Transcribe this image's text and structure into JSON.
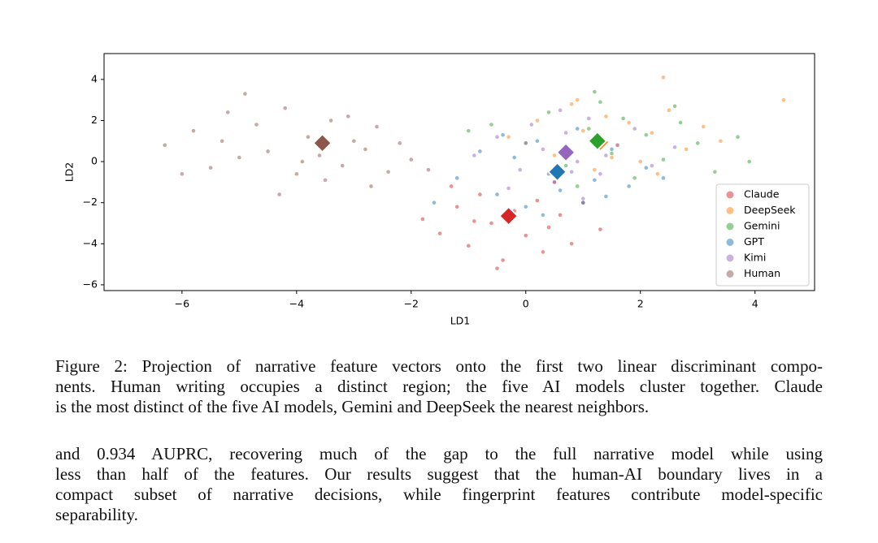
{
  "chart_data": {
    "type": "scatter",
    "xlabel": "LD1",
    "ylabel": "LD2",
    "xlim": [
      -7.36,
      5.04
    ],
    "ylim": [
      -6.28,
      5.26
    ],
    "xticks": [
      {
        "value": -6,
        "label": "−6"
      },
      {
        "value": -4,
        "label": "−4"
      },
      {
        "value": -2,
        "label": "−2"
      },
      0,
      2,
      4
    ],
    "yticks": [
      {
        "value": -6,
        "label": "−6"
      },
      {
        "value": -4,
        "label": "−4"
      },
      {
        "value": -2,
        "label": "−2"
      },
      0,
      2,
      4
    ],
    "legend": "lower right",
    "series": [
      {
        "name": "Claude",
        "color": "#d62728",
        "x": [
          -1.8,
          -1.5,
          -1.2,
          -1.0,
          -0.8,
          -0.6,
          -0.4,
          -0.2,
          0.0,
          0.2,
          0.4,
          0.6,
          0.8,
          1.0,
          1.3,
          -1.3,
          -0.5,
          0.3,
          -0.9,
          0.5
        ],
        "y": [
          -2.8,
          -3.5,
          -2.2,
          -4.1,
          -1.6,
          -3.0,
          -4.8,
          -2.4,
          -3.6,
          -1.9,
          -3.2,
          -2.6,
          -4.0,
          -2.0,
          -3.3,
          -1.2,
          -5.2,
          -4.4,
          -2.9,
          -1.0
        ],
        "centroid": {
          "x": -0.3,
          "y": -2.65
        }
      },
      {
        "name": "DeepSeek",
        "color": "#ff7f0e",
        "x": [
          -0.3,
          0.2,
          0.5,
          0.8,
          1.0,
          1.2,
          1.4,
          1.6,
          1.8,
          2.0,
          2.2,
          2.5,
          2.8,
          3.1,
          3.4,
          0.9,
          1.5,
          2.3,
          4.5,
          2.4
        ],
        "y": [
          1.2,
          2.0,
          0.3,
          2.8,
          1.5,
          -0.4,
          2.2,
          0.8,
          1.9,
          0.0,
          1.4,
          2.5,
          0.6,
          1.7,
          1.0,
          3.0,
          0.2,
          -0.6,
          3.0,
          4.1
        ],
        "centroid": {
          "x": 1.3,
          "y": 0.95
        }
      },
      {
        "name": "Gemini",
        "color": "#2ca02c",
        "x": [
          -0.6,
          0.0,
          0.4,
          0.7,
          1.1,
          1.3,
          1.5,
          1.7,
          1.9,
          2.1,
          2.4,
          2.7,
          3.0,
          3.3,
          3.7,
          0.9,
          2.6,
          1.2,
          -1.0,
          3.9
        ],
        "y": [
          1.8,
          0.9,
          2.4,
          -0.2,
          1.6,
          2.9,
          0.4,
          2.1,
          -0.8,
          1.3,
          0.1,
          1.9,
          0.9,
          -0.5,
          1.2,
          -1.2,
          2.7,
          3.4,
          1.5,
          0.0
        ],
        "centroid": {
          "x": 1.25,
          "y": 1.0
        }
      },
      {
        "name": "GPT",
        "color": "#1f77b4",
        "x": [
          -1.2,
          -0.8,
          -0.5,
          -0.2,
          0.0,
          0.2,
          0.4,
          0.6,
          0.8,
          1.0,
          1.2,
          1.5,
          1.8,
          2.1,
          -0.4,
          0.3,
          0.9,
          1.4,
          -1.6,
          2.4
        ],
        "y": [
          -0.8,
          0.5,
          -1.6,
          0.2,
          -2.2,
          1.0,
          -0.6,
          -1.4,
          0.4,
          -2.0,
          -0.9,
          0.6,
          -1.2,
          -0.3,
          1.3,
          -2.6,
          1.6,
          -1.7,
          -2.0,
          -0.8
        ],
        "centroid": {
          "x": 0.55,
          "y": -0.5
        }
      },
      {
        "name": "Kimi",
        "color": "#9467bd",
        "x": [
          -0.9,
          -0.5,
          -0.1,
          0.1,
          0.3,
          0.5,
          0.7,
          0.9,
          1.1,
          1.3,
          1.6,
          1.9,
          2.2,
          -0.3,
          0.6,
          1.0,
          1.4,
          0.0,
          2.6,
          0.8
        ],
        "y": [
          0.3,
          1.2,
          -0.4,
          1.8,
          0.6,
          -1.0,
          1.4,
          0.0,
          2.1,
          -0.6,
          0.8,
          1.6,
          -0.2,
          -1.3,
          2.5,
          -1.8,
          0.3,
          0.9,
          0.7,
          -0.5
        ],
        "centroid": {
          "x": 0.7,
          "y": 0.45
        }
      },
      {
        "name": "Human",
        "color": "#8c564b",
        "x": [
          -6.3,
          -5.8,
          -5.5,
          -5.2,
          -5.0,
          -4.7,
          -4.5,
          -4.2,
          -4.0,
          -3.8,
          -3.6,
          -3.4,
          -3.2,
          -3.0,
          -2.8,
          -2.6,
          -2.4,
          -2.2,
          -2.0,
          -1.7,
          -6.0,
          -4.9,
          -4.3,
          -3.9,
          -3.1,
          -2.7,
          -5.3,
          -3.5
        ],
        "y": [
          0.8,
          1.5,
          -0.3,
          2.4,
          0.2,
          1.8,
          0.5,
          2.6,
          -0.6,
          1.2,
          0.3,
          2.0,
          -0.2,
          1.0,
          0.6,
          1.7,
          -0.5,
          0.9,
          0.1,
          -0.4,
          -0.6,
          3.3,
          -1.6,
          0.0,
          2.2,
          -1.2,
          1.0,
          -0.9
        ],
        "centroid": {
          "x": -3.55,
          "y": 0.9
        }
      }
    ]
  },
  "caption": {
    "lines": [
      "Figure 2: Projection of narrative feature vectors onto the first two linear discriminant compo-",
      "nents. Human writing occupies a distinct region; the five AI models cluster together. Claude",
      "is the most distinct of the five AI models, Gemini and DeepSeek the nearest neighbors."
    ]
  },
  "body": {
    "lines": [
      "and 0.934 AUPRC, recovering much of the gap to the full narrative model while using",
      "less than half of the features. Our results suggest that the human-AI boundary lives in a",
      "compact subset of narrative decisions, while fingerprint features contribute model-specific",
      "separability."
    ]
  }
}
